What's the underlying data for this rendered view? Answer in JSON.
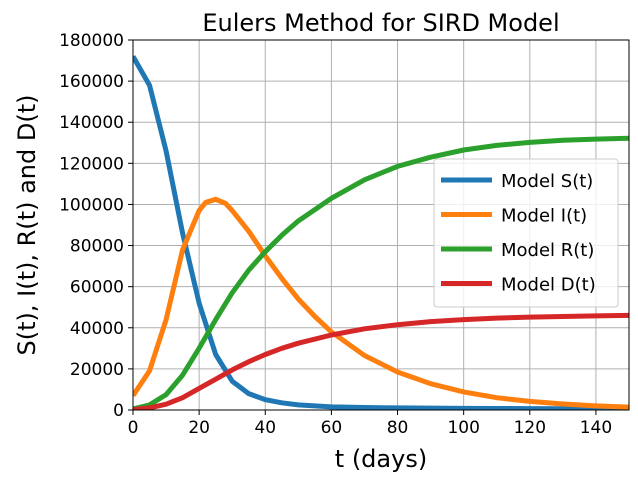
{
  "chart_data": {
    "type": "line",
    "title": "Eulers Method for SIRD Model",
    "xlabel": "t (days)",
    "ylabel": "S(t), I(t), R(t) and D(t)",
    "xlim": [
      0,
      150
    ],
    "ylim": [
      0,
      180000
    ],
    "xticks": [
      0,
      20,
      40,
      60,
      80,
      100,
      120,
      140
    ],
    "yticks": [
      0,
      20000,
      40000,
      60000,
      80000,
      100000,
      120000,
      140000,
      160000,
      180000
    ],
    "grid": true,
    "legend_position": "center-right",
    "series": [
      {
        "name": "Model S(t)",
        "color": "#1f77b4",
        "x": [
          0,
          5,
          10,
          15,
          20,
          25,
          30,
          35,
          40,
          45,
          50,
          60,
          70,
          80,
          90,
          100,
          110,
          120,
          130,
          140,
          150
        ],
        "y": [
          172000,
          158000,
          126000,
          86000,
          52000,
          27000,
          14000,
          8000,
          5000,
          3500,
          2500,
          1500,
          1200,
          1000,
          900,
          800,
          750,
          700,
          650,
          600,
          600
        ]
      },
      {
        "name": "Model I(t)",
        "color": "#ff7f0e",
        "x": [
          0,
          5,
          10,
          15,
          20,
          22,
          25,
          28,
          30,
          35,
          40,
          45,
          50,
          55,
          60,
          70,
          80,
          90,
          100,
          110,
          120,
          130,
          140,
          150
        ],
        "y": [
          7000,
          19000,
          44000,
          78000,
          97000,
          101000,
          102500,
          100500,
          97000,
          87000,
          75000,
          64000,
          54000,
          45500,
          38000,
          26500,
          18500,
          12800,
          8800,
          6000,
          4200,
          2900,
          2000,
          1400
        ]
      },
      {
        "name": "Model R(t)",
        "color": "#2ca02c",
        "x": [
          0,
          5,
          10,
          15,
          20,
          25,
          30,
          35,
          40,
          45,
          50,
          60,
          70,
          80,
          90,
          100,
          110,
          120,
          130,
          140,
          150
        ],
        "y": [
          500,
          2500,
          7500,
          17000,
          30000,
          44000,
          57000,
          68000,
          77000,
          85000,
          92000,
          103000,
          112000,
          118500,
          123000,
          126500,
          128700,
          130200,
          131200,
          131800,
          132200
        ]
      },
      {
        "name": "Model D(t)",
        "color": "#d62728",
        "x": [
          0,
          5,
          10,
          15,
          20,
          25,
          30,
          35,
          40,
          45,
          50,
          60,
          70,
          80,
          90,
          100,
          110,
          120,
          130,
          140,
          150
        ],
        "y": [
          200,
          1000,
          2800,
          6000,
          10500,
          15000,
          19500,
          23500,
          27000,
          30000,
          32500,
          36500,
          39500,
          41500,
          43000,
          44000,
          44700,
          45200,
          45500,
          45800,
          46000
        ]
      }
    ]
  }
}
